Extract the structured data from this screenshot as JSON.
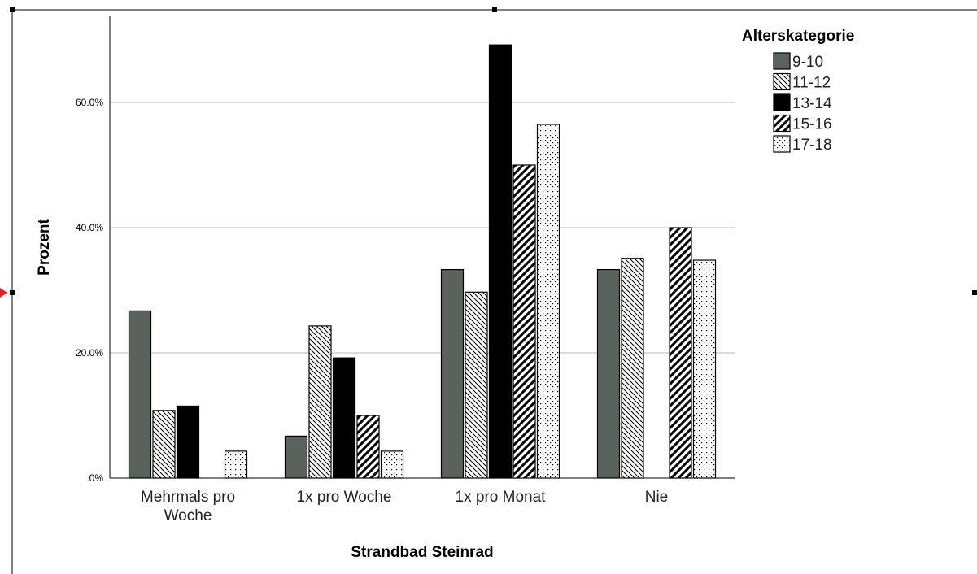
{
  "chart_data": {
    "type": "bar",
    "title": "",
    "xlabel": "Strandbad Steinrad",
    "ylabel": "Prozent",
    "ylim": [
      0,
      72
    ],
    "yticks": [
      0,
      20,
      40,
      60
    ],
    "ytick_labels": [
      ".0%",
      "20.0%",
      "40.0%",
      "60.0%"
    ],
    "grid": true,
    "legend_title": "Alterskategorie",
    "legend_position": "top-right",
    "categories": [
      "Mehrmals pro Woche",
      "1x pro Woche",
      "1x pro Monat",
      "Nie"
    ],
    "category_label_lines": [
      [
        "Mehrmals pro",
        "Woche"
      ],
      [
        "1x pro Woche"
      ],
      [
        "1x pro Monat"
      ],
      [
        "Nie"
      ]
    ],
    "series": [
      {
        "name": "9-10",
        "pattern": "solid-gray",
        "color": "#5a625d",
        "values": [
          26.7,
          6.7,
          33.3,
          33.3
        ]
      },
      {
        "name": "11-12",
        "pattern": "hatch-back",
        "color": "#000000",
        "values": [
          10.8,
          24.3,
          29.7,
          35.1
        ]
      },
      {
        "name": "13-14",
        "pattern": "solid-black",
        "color": "#000000",
        "values": [
          11.5,
          19.2,
          69.2,
          0
        ]
      },
      {
        "name": "15-16",
        "pattern": "hatch-thick",
        "color": "#000000",
        "values": [
          0,
          10.0,
          50.0,
          40.0
        ]
      },
      {
        "name": "17-18",
        "pattern": "dots",
        "color": "#000000",
        "values": [
          4.3,
          4.3,
          56.5,
          34.8
        ]
      }
    ]
  }
}
